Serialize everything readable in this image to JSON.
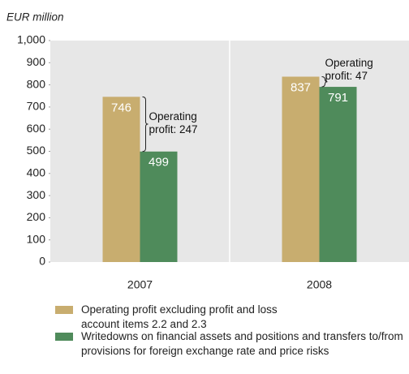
{
  "chart_data": {
    "type": "bar",
    "y_label": "EUR million",
    "categories": [
      "2007",
      "2008"
    ],
    "series": [
      {
        "name": "Operating profit excluding profit and loss account items 2.2 and 2.3",
        "color": "#c8ad6f",
        "values": [
          746,
          837
        ]
      },
      {
        "name": "Writedowns on financial assets and positions and transfers to/from provisions for foreign exchange rate and price risks",
        "color": "#4f8b5b",
        "values": [
          499,
          791
        ]
      }
    ],
    "annotations": [
      "Operating profit: 247",
      "Operating profit: 47"
    ],
    "ylim": [
      0,
      1000
    ],
    "yticks": [
      0,
      100,
      200,
      300,
      400,
      500,
      600,
      700,
      800,
      900,
      {
        "value": 1000,
        "label": "1,000"
      }
    ],
    "plot_background": "#e7e7e7"
  }
}
